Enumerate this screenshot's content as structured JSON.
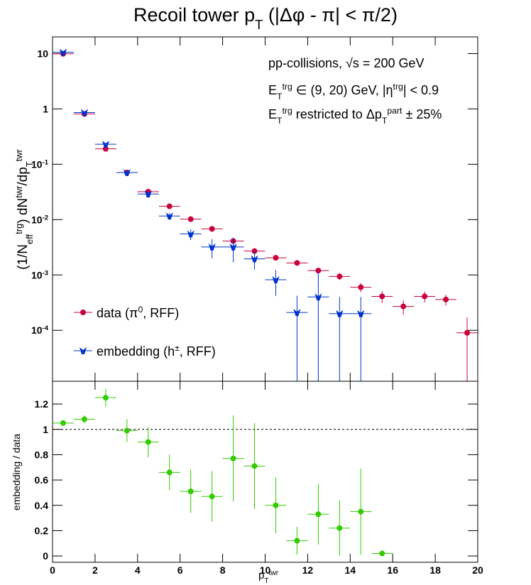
{
  "chart_data": [
    {
      "type": "errorbar",
      "title": [
        "Recoil tower p",
        "T",
        " (|Δφ - π| < π/2)"
      ],
      "y_label": [
        "(1/N",
        "eff",
        "trg",
        ") dN",
        "twr",
        "/dp",
        "T",
        "twr"
      ],
      "annotations": [
        [
          "pp-collisions, √s = 200 GeV"
        ],
        [
          "E",
          "T",
          "trg",
          " ∈ (9, 20) GeV, |η",
          "trg",
          "| < 0.9"
        ],
        [
          "E",
          "T",
          "trg",
          " restricted to Δp",
          "T",
          "part",
          " ± 25%"
        ]
      ],
      "x": [
        0.5,
        1.5,
        2.5,
        3.5,
        4.5,
        5.5,
        6.5,
        7.5,
        8.5,
        9.5,
        10.5,
        11.5,
        12.5,
        13.5,
        14.5,
        15.5,
        16.5,
        17.5,
        18.5,
        19.5
      ],
      "xerr": 0.5,
      "xlim": [
        0,
        20
      ],
      "xticks": [
        0,
        2,
        4,
        6,
        8,
        10,
        12,
        14,
        16,
        18,
        20
      ],
      "ylim": [
        1.2e-05,
        20
      ],
      "log_y": true,
      "yticks": [
        {
          "value": 0.0001,
          "label": "10",
          "exponent": "-4"
        },
        {
          "value": 0.001,
          "label": "10",
          "exponent": "-3"
        },
        {
          "value": 0.01,
          "label": "10",
          "exponent": "-2"
        },
        {
          "value": 0.1,
          "label": "10",
          "exponent": "-1"
        },
        1,
        10
      ],
      "legend": "lower left",
      "series": [
        {
          "name": [
            "data (π",
            "0",
            ", RFF)"
          ],
          "color": "#c8003c",
          "marker": "circle",
          "values": [
            9.9,
            0.81,
            0.19,
            0.071,
            0.032,
            0.0174,
            0.0102,
            0.0068,
            0.0041,
            0.0027,
            0.00204,
            0.00165,
            0.0012,
            0.00094,
            0.0006,
            0.00041,
            0.00027,
            0.00041,
            0.00036,
            9e-05
          ],
          "errors": [
            0.3,
            0.03,
            0.008,
            0.003,
            0.0015,
            0.0009,
            0.0006,
            0.0004,
            0.0003,
            0.00022,
            0.00018,
            0.00016,
            0.00014,
            0.00013,
            0.00011,
            0.0001,
            8e-05,
            9e-05,
            8e-05,
            8e-05
          ]
        },
        {
          "name": [
            "embedding (h",
            "±",
            ", RFF)"
          ],
          "color": "#0033cc",
          "marker": "triangle-down",
          "values": [
            10.6,
            0.86,
            0.23,
            0.071,
            0.029,
            0.0116,
            0.0055,
            0.0032,
            0.0032,
            0.00195,
            0.00082,
            0.00021,
            0.0004,
            0.0002,
            0.0002,
            null,
            null,
            null,
            null,
            null
          ],
          "errors": [
            0.4,
            0.04,
            0.012,
            0.004,
            0.002,
            0.0015,
            0.0012,
            0.0012,
            0.0015,
            0.0007,
            0.0004,
            0.00021,
            0.0007,
            0.0002,
            0.0002,
            null,
            null,
            null,
            null,
            null
          ]
        }
      ]
    },
    {
      "type": "errorbar",
      "y_label": "embedding / data",
      "x_label": [
        "p",
        "T",
        "twr"
      ],
      "x": [
        0.5,
        1.5,
        2.5,
        3.5,
        4.5,
        5.5,
        6.5,
        7.5,
        8.5,
        9.5,
        10.5,
        11.5,
        12.5,
        13.5,
        14.5,
        15.5
      ],
      "xerr": 0.5,
      "xlim": [
        0,
        20
      ],
      "xticks": [
        0,
        2,
        4,
        6,
        8,
        10,
        12,
        14,
        16,
        18,
        20
      ],
      "ylim": [
        -0.05,
        1.38
      ],
      "yticks": [
        0,
        0.2,
        0.4,
        0.6,
        0.8,
        1,
        1.2
      ],
      "reference_line": 1,
      "series": [
        {
          "color": "#33cc00",
          "marker": "circle",
          "values": [
            1.05,
            1.08,
            1.25,
            0.99,
            0.9,
            0.66,
            0.51,
            0.47,
            0.77,
            0.71,
            0.4,
            0.12,
            0.33,
            0.22,
            0.35,
            0.02
          ],
          "errors": [
            0.01,
            0.03,
            0.07,
            0.09,
            0.12,
            0.14,
            0.17,
            0.2,
            0.34,
            0.34,
            0.22,
            0.11,
            0.24,
            0.22,
            0.34,
            0.01
          ]
        }
      ]
    }
  ]
}
